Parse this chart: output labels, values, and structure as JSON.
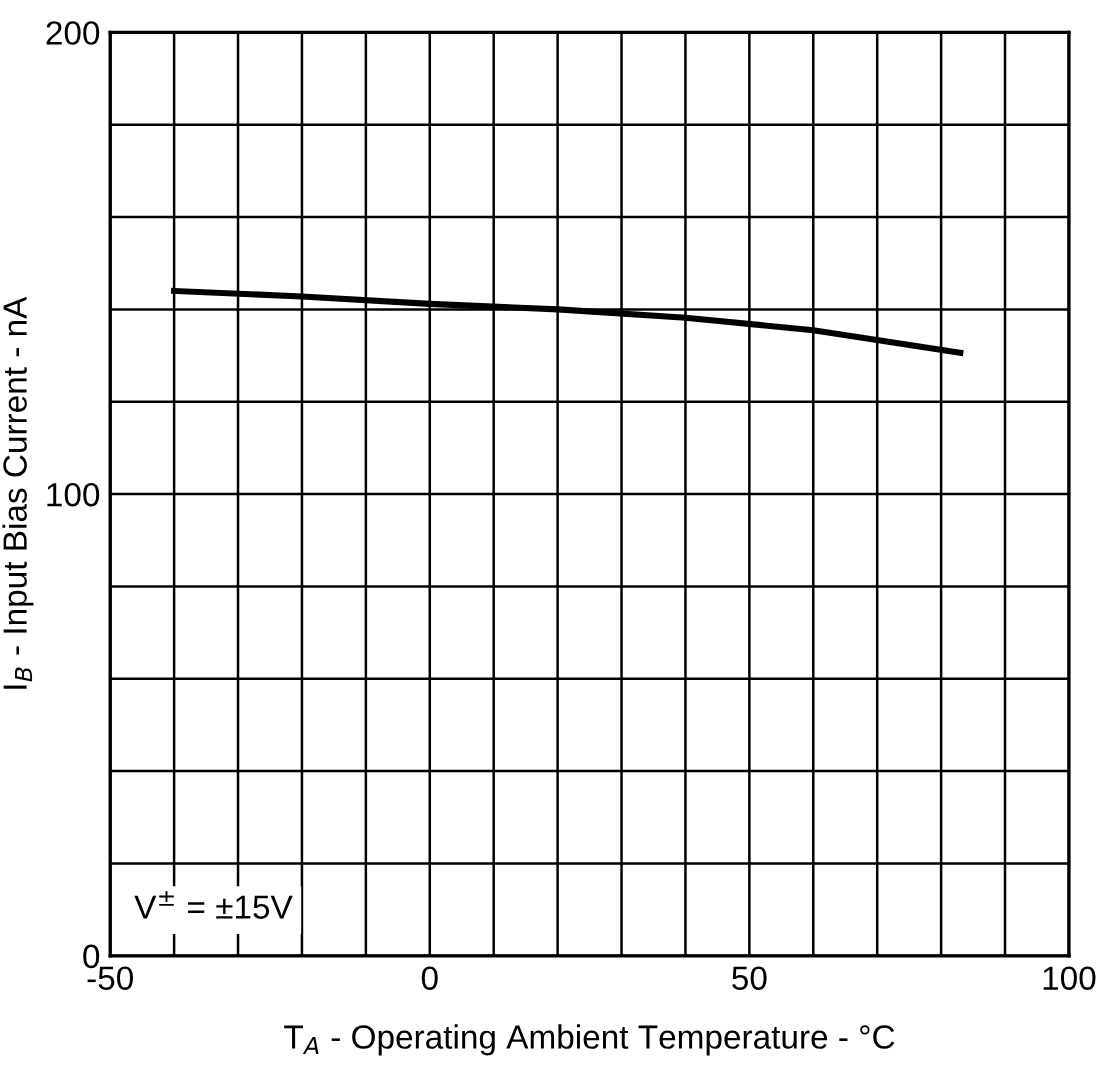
{
  "chart_data": {
    "type": "line",
    "xlabel": "T$_{A}$ - Operating Ambient Temperature - °C",
    "ylabel": "I$_{B}$ - Input Bias Current - nA",
    "annotations": [
      "V$^{±}$ = ±15V"
    ],
    "x": [
      -40,
      -20,
      0,
      20,
      40,
      60,
      83
    ],
    "series": [
      {
        "color": "#000000",
        "values": [
          144,
          142.8,
          141.2,
          140,
          138.2,
          135.5,
          130.6
        ]
      }
    ],
    "xlim": [
      -50,
      100
    ],
    "xticks": [
      -50,
      {
        "value": -40,
        "label": null
      },
      {
        "value": -30,
        "label": null
      },
      {
        "value": -20,
        "label": null
      },
      {
        "value": -10,
        "label": null
      },
      0,
      {
        "value": 10,
        "label": null
      },
      {
        "value": 20,
        "label": null
      },
      {
        "value": 30,
        "label": null
      },
      {
        "value": 40,
        "label": null
      },
      50,
      {
        "value": 60,
        "label": null
      },
      {
        "value": 70,
        "label": null
      },
      {
        "value": 80,
        "label": null
      },
      {
        "value": 90,
        "label": null
      },
      100
    ],
    "ylim": [
      0,
      200
    ],
    "yticks": [
      0,
      {
        "value": 20,
        "label": null
      },
      {
        "value": 40,
        "label": null
      },
      {
        "value": 60,
        "label": null
      },
      {
        "value": 80,
        "label": null
      },
      100,
      {
        "value": 120,
        "label": null
      },
      {
        "value": 140,
        "label": null
      },
      {
        "value": 160,
        "label": null
      },
      {
        "value": 180,
        "label": null
      },
      200
    ],
    "grid": true,
    "line_style": "solid",
    "marker": "none",
    "legend": false
  }
}
